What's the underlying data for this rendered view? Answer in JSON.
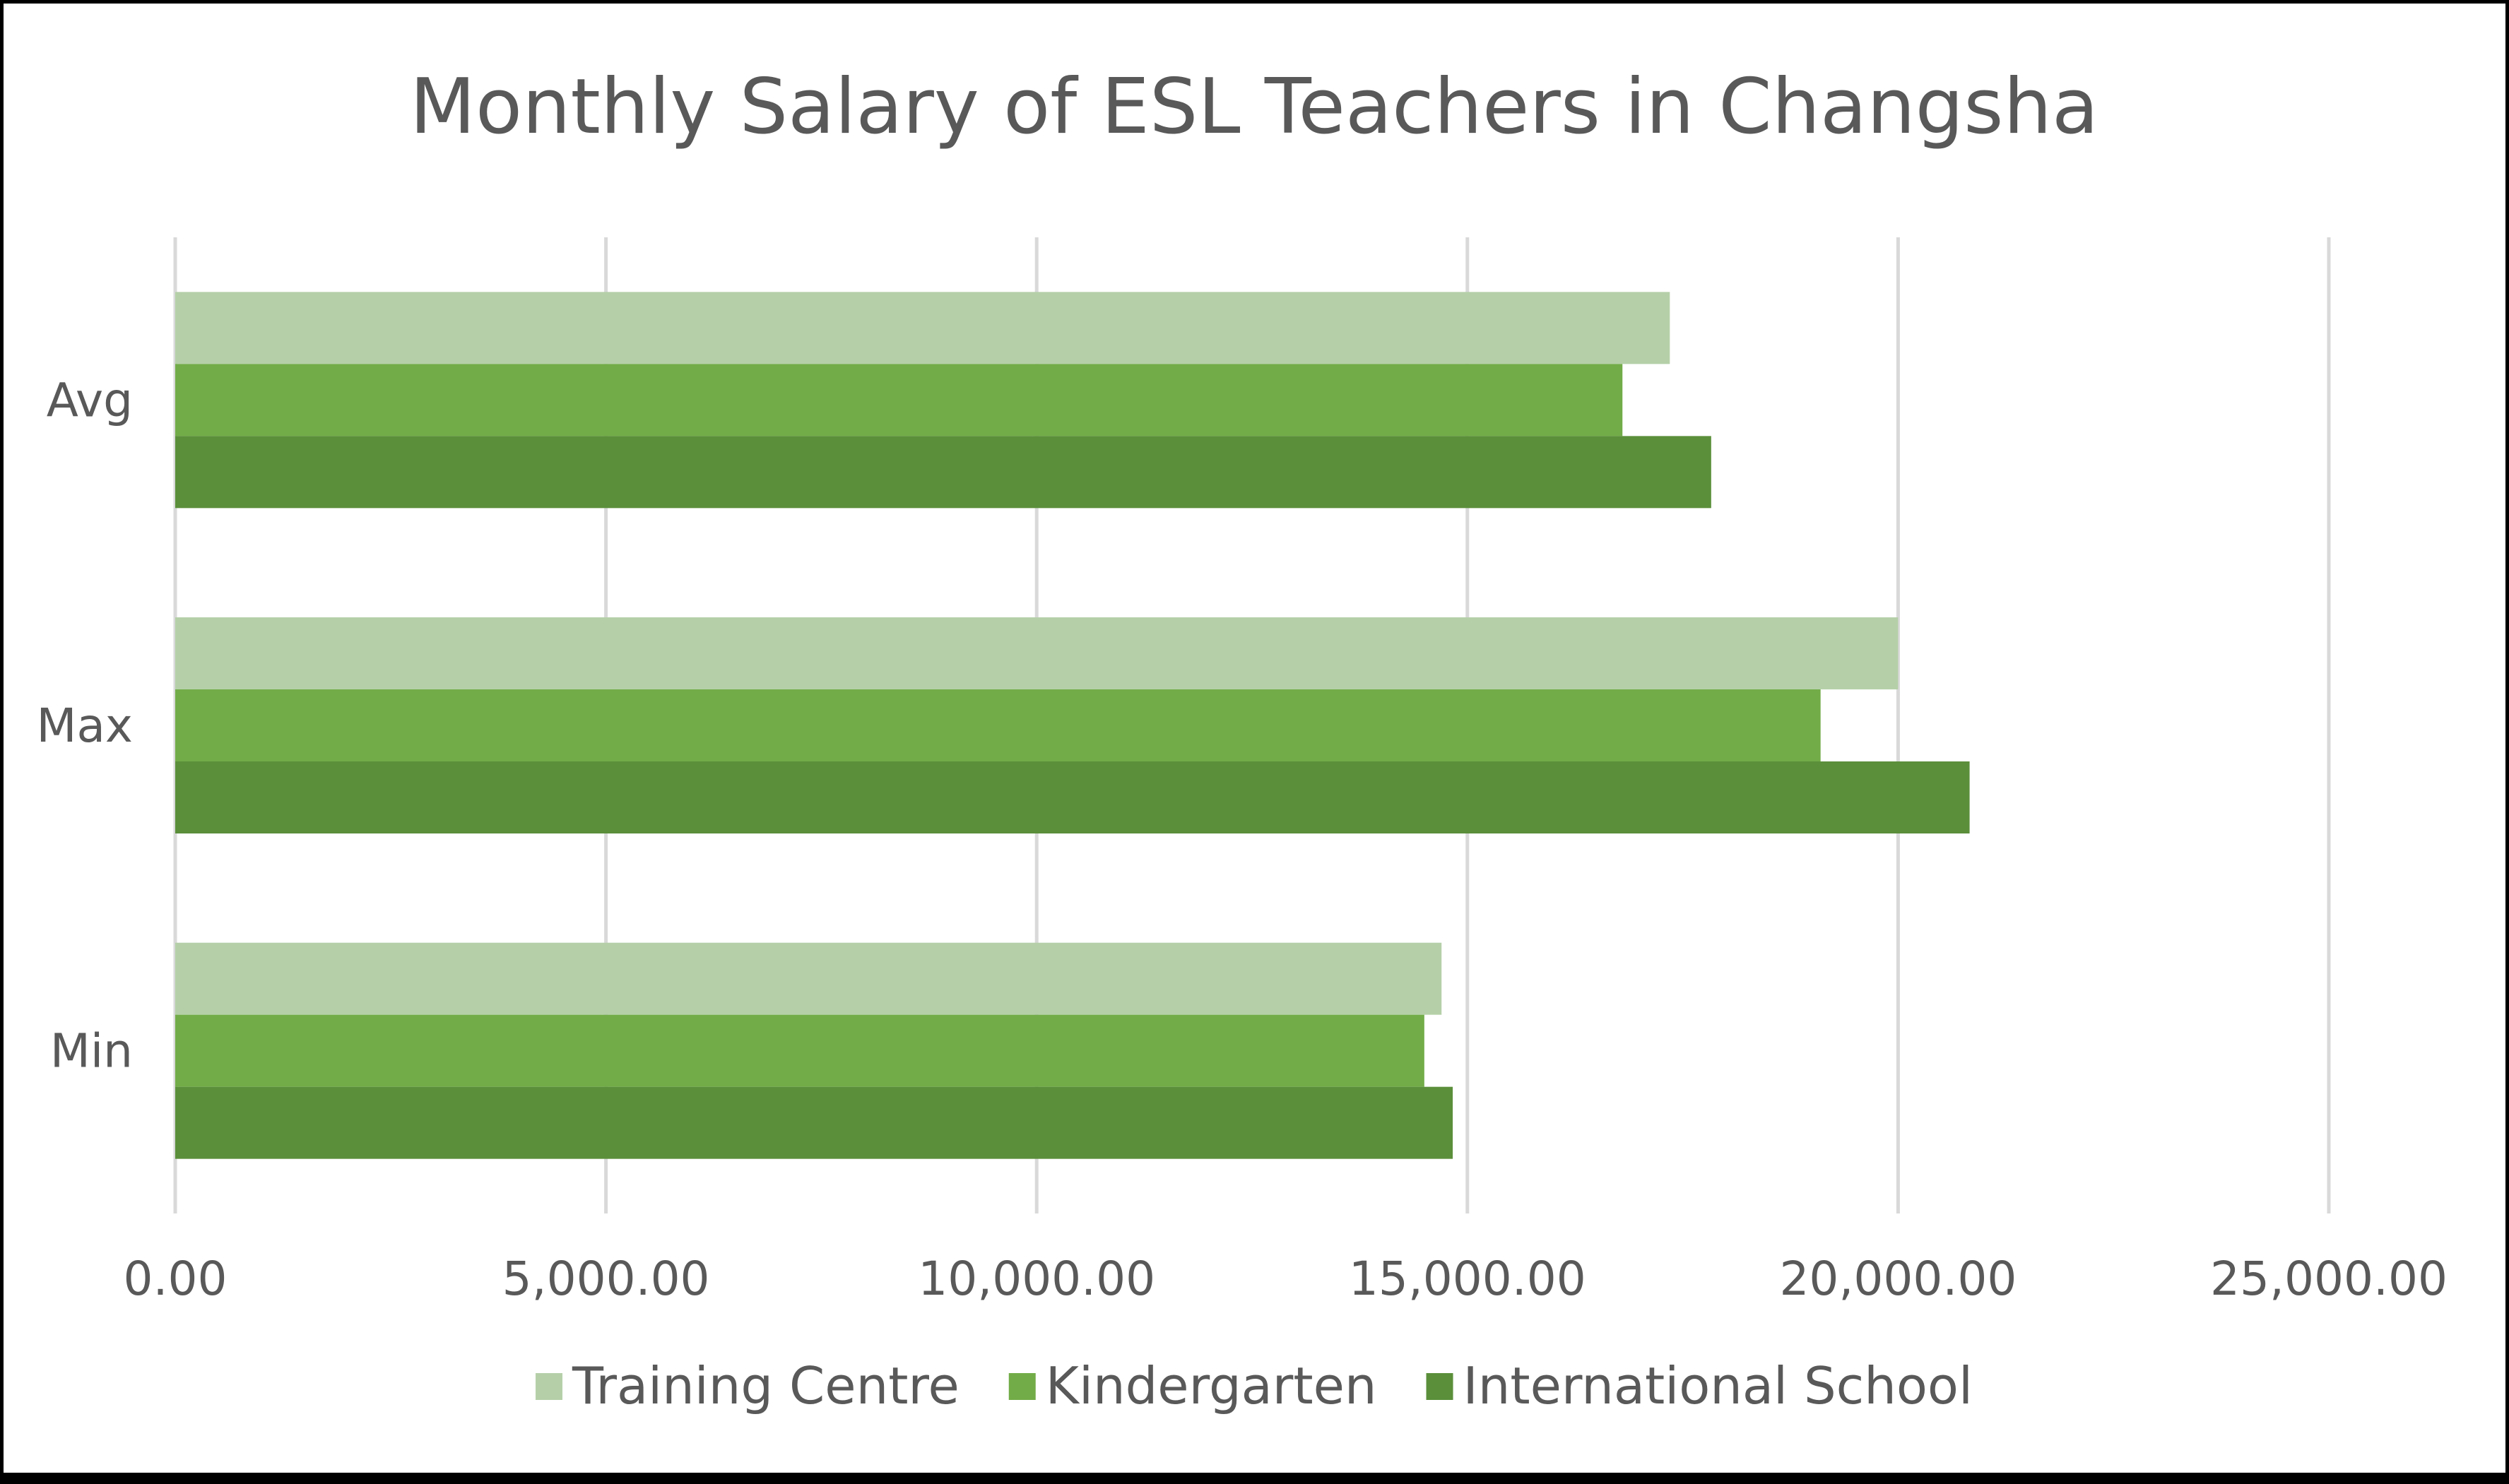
{
  "chart_data": {
    "type": "bar",
    "orientation": "horizontal",
    "title": "Monthly Salary of ESL Teachers in Changsha",
    "categories": [
      "Min",
      "Max",
      "Avg"
    ],
    "series": [
      {
        "name": "Training Centre",
        "values": [
          14700,
          20000,
          17350
        ],
        "color": "#b5d0a8"
      },
      {
        "name": "Kindergarten",
        "values": [
          14500,
          19100,
          16800
        ],
        "color": "#72ac48"
      },
      {
        "name": "International School",
        "values": [
          14830,
          20830,
          17830
        ],
        "color": "#5b8f3a"
      }
    ],
    "xlim": [
      0,
      25000
    ],
    "xticks": [
      0,
      5000,
      10000,
      15000,
      20000,
      25000
    ],
    "xtick_labels": [
      "0.00",
      "5,000.00",
      "10,000.00",
      "15,000.00",
      "20,000.00",
      "25,000.00"
    ],
    "grid": true,
    "gridline_color": "#d9d9d9",
    "legend": "bottom"
  }
}
